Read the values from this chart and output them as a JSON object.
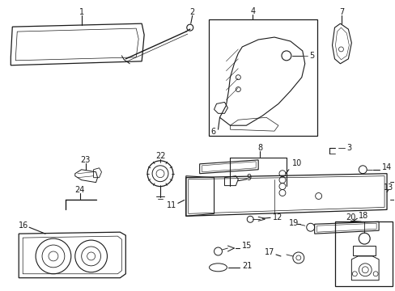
{
  "bg_color": "#ffffff",
  "line_color": "#1a1a1a",
  "fig_width": 4.89,
  "fig_height": 3.6,
  "dpi": 100,
  "label_fontsize": 7.0
}
